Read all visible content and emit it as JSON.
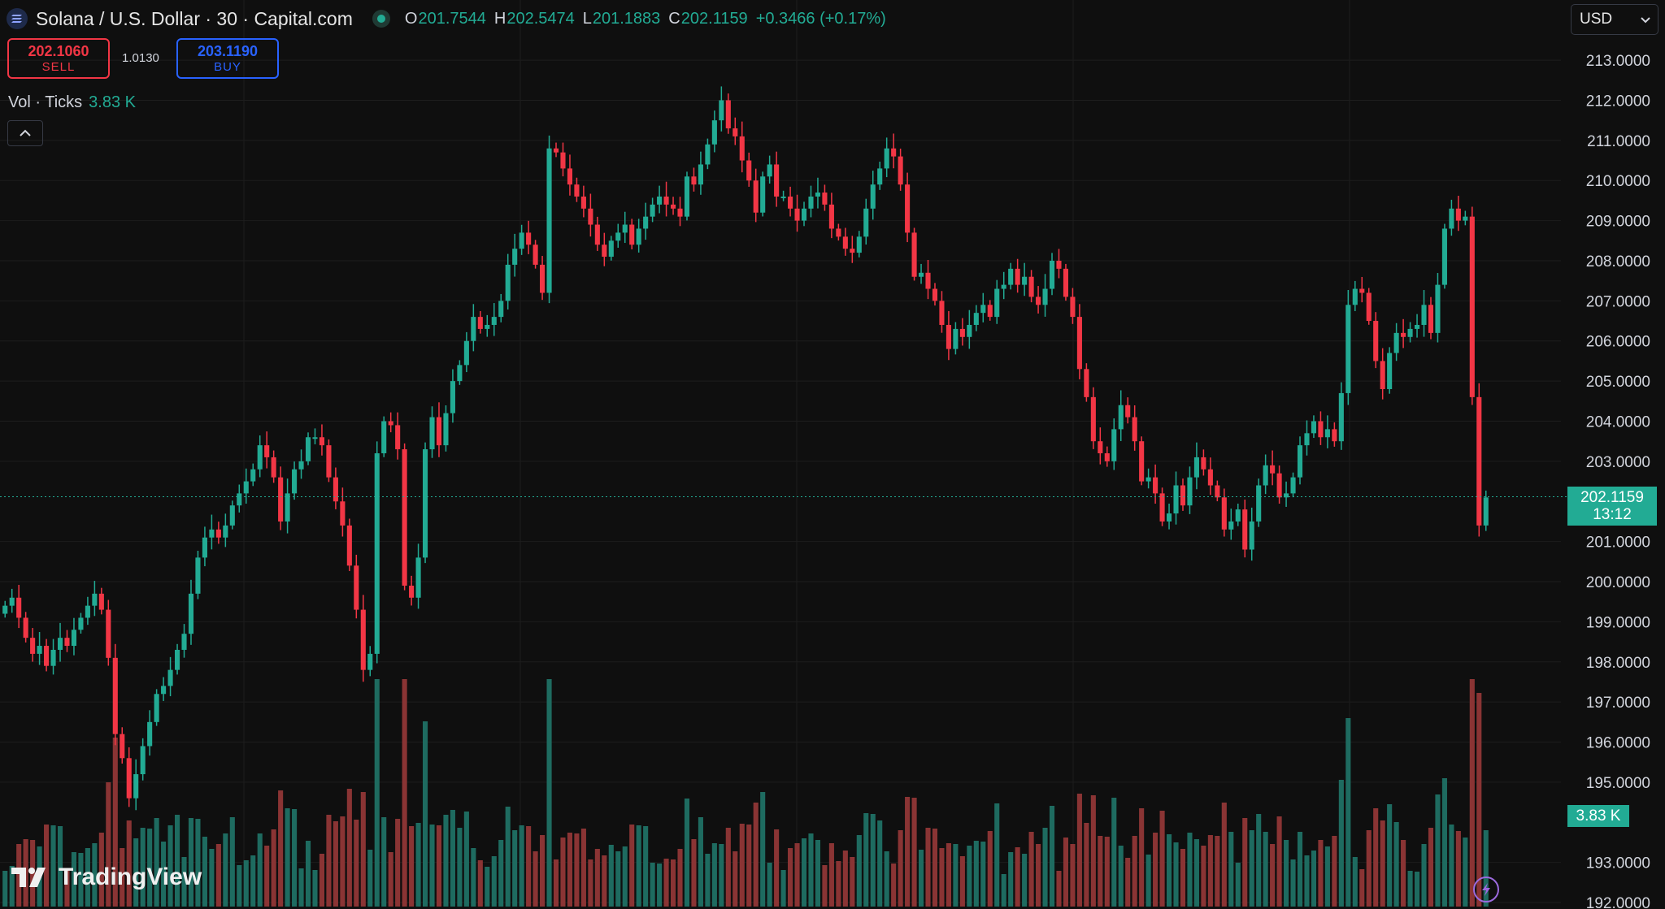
{
  "header": {
    "title": "Solana / U.S. Dollar · 30 · Capital.com",
    "ohlc": {
      "o_label": "O",
      "o": "201.7544",
      "h_label": "H",
      "h": "202.5474",
      "l_label": "L",
      "l": "201.1883",
      "c_label": "C",
      "c": "202.1159",
      "change": "+0.3466 (+0.17%)"
    }
  },
  "trade": {
    "sell_price": "202.1060",
    "sell_label": "SELL",
    "spread": "1.0130",
    "buy_price": "203.1190",
    "buy_label": "BUY"
  },
  "volume_legend": {
    "label": "Vol · Ticks",
    "value": "3.83 K"
  },
  "currency": {
    "value": "USD"
  },
  "last_price_tag": {
    "price": "202.1159",
    "countdown": "13:12"
  },
  "volume_tag": "3.83 K",
  "branding": "TradingView",
  "colors": {
    "up": "#22ab94",
    "down": "#f23645",
    "up_vol": "#1e6b60",
    "down_vol": "#8a3434",
    "background": "#0f0f0f",
    "grid": "#1d1d1d"
  },
  "chart_data": {
    "type": "candlestick",
    "price_axis_ticks": [
      "213.0000",
      "212.0000",
      "211.0000",
      "210.0000",
      "209.0000",
      "208.0000",
      "207.0000",
      "206.0000",
      "205.0000",
      "204.0000",
      "203.0000",
      "201.0000",
      "200.0000",
      "199.0000",
      "198.0000",
      "197.0000",
      "196.0000",
      "195.0000",
      "193.0000",
      "192.0000"
    ],
    "ylim": [
      191.9,
      214.5
    ],
    "last_price": 202.1159,
    "closes": [
      199.4,
      199.6,
      199.1,
      198.6,
      198.2,
      198.4,
      197.9,
      198.3,
      198.6,
      198.4,
      198.8,
      199.1,
      199.4,
      199.7,
      199.3,
      198.1,
      196.2,
      195.6,
      194.6,
      195.2,
      195.9,
      196.5,
      197.2,
      197.4,
      197.8,
      198.3,
      198.7,
      199.7,
      200.6,
      201.1,
      201.3,
      201.1,
      201.4,
      201.9,
      202.2,
      202.5,
      202.8,
      203.4,
      203.1,
      202.6,
      201.5,
      202.2,
      202.8,
      203.0,
      203.6,
      203.6,
      203.4,
      202.6,
      202.0,
      201.4,
      200.4,
      199.3,
      197.8,
      198.2,
      203.2,
      204.0,
      203.9,
      203.3,
      199.9,
      199.6,
      200.6,
      203.3,
      204.1,
      203.4,
      204.2,
      205.0,
      205.4,
      206.0,
      206.6,
      206.3,
      206.4,
      206.6,
      207.0,
      207.9,
      208.3,
      208.7,
      208.4,
      207.9,
      207.2,
      210.8,
      210.7,
      210.3,
      209.9,
      209.6,
      209.3,
      208.9,
      208.4,
      208.1,
      208.5,
      208.7,
      208.9,
      208.4,
      208.8,
      209.1,
      209.4,
      209.6,
      209.4,
      209.3,
      209.1,
      210.1,
      209.9,
      210.4,
      210.9,
      211.5,
      212.0,
      211.3,
      211.1,
      210.5,
      210.0,
      209.2,
      210.1,
      210.4,
      209.6,
      209.6,
      209.3,
      209.0,
      209.3,
      209.6,
      209.7,
      209.4,
      208.8,
      208.6,
      208.3,
      208.2,
      208.6,
      209.3,
      209.9,
      210.3,
      210.8,
      210.6,
      209.9,
      208.7,
      207.6,
      207.7,
      207.3,
      207.0,
      206.4,
      205.8,
      206.3,
      206.1,
      206.4,
      206.7,
      206.9,
      206.6,
      207.3,
      207.4,
      207.8,
      207.4,
      207.6,
      207.1,
      206.9,
      207.3,
      208.0,
      207.8,
      207.1,
      206.6,
      205.3,
      204.6,
      203.5,
      203.2,
      203.0,
      203.8,
      204.4,
      204.1,
      203.5,
      202.5,
      202.6,
      202.2,
      201.5,
      201.7,
      202.4,
      201.9,
      202.6,
      203.1,
      202.8,
      202.4,
      202.1,
      201.3,
      201.5,
      201.8,
      200.8,
      201.5,
      202.4,
      202.9,
      202.7,
      202.1,
      202.2,
      202.6,
      203.4,
      203.7,
      204.0,
      203.6,
      203.8,
      203.5,
      204.7,
      206.9,
      207.3,
      207.2,
      206.5,
      205.5,
      204.8,
      205.7,
      206.2,
      206.1,
      206.3,
      206.4,
      206.9,
      206.2,
      207.4,
      208.8,
      209.3,
      209.0,
      209.1,
      204.6,
      201.4,
      202.1
    ]
  }
}
